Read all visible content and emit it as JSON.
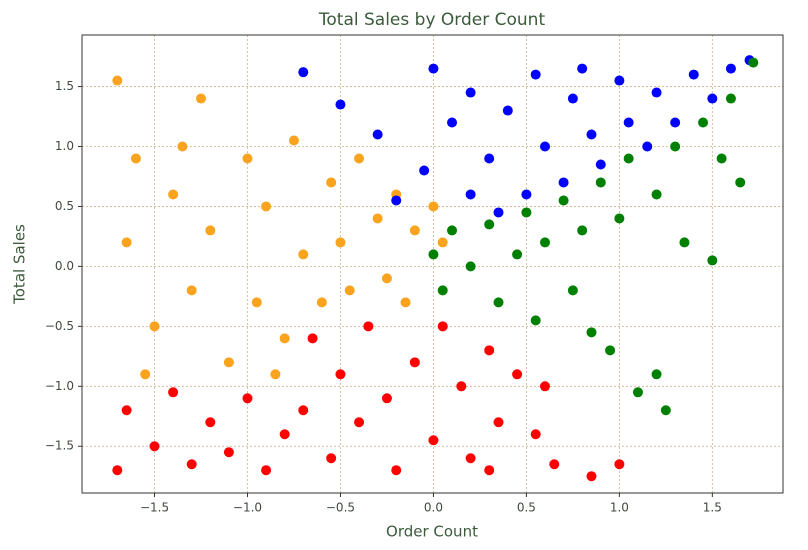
{
  "chart_data": {
    "type": "scatter",
    "title": "Total Sales by Order Count",
    "x_label": "Order Count",
    "y_label": "Total Sales",
    "xlim": [
      -1.89,
      1.88
    ],
    "ylim": [
      -1.89,
      1.93
    ],
    "grid": true,
    "xticks": [
      {
        "value": -1.5,
        "label": "−1.5"
      },
      {
        "value": -1.0,
        "label": "−1.0"
      },
      {
        "value": -0.5,
        "label": "−0.5"
      },
      {
        "value": 0,
        "label": "0.0"
      },
      0.5,
      {
        "value": 1.0,
        "label": "1.0"
      },
      1.5
    ],
    "yticks": [
      {
        "value": -1.5,
        "label": "−1.5"
      },
      {
        "value": -1.0,
        "label": "−1.0"
      },
      {
        "value": -0.5,
        "label": "−0.5"
      },
      {
        "value": 0,
        "label": "0.0"
      },
      0.5,
      {
        "value": 1.0,
        "label": "1.0"
      },
      1.5
    ],
    "series": [
      {
        "color": "#f9a31e",
        "x": [
          -1.7,
          -1.6,
          -1.65,
          -1.5,
          -1.4,
          -1.3,
          -1.25,
          -1.2,
          -1.1,
          -1.0,
          -0.95,
          -0.9,
          -0.8,
          -0.75,
          -0.7,
          -0.6,
          -0.55,
          -0.5,
          -0.45,
          -0.4,
          -0.3,
          -0.25,
          -0.2,
          -0.15,
          -0.1,
          0.0,
          0.05,
          -1.55,
          -1.35,
          -0.85
        ],
        "values": [
          1.55,
          0.9,
          0.2,
          -0.5,
          0.6,
          -0.2,
          1.4,
          0.3,
          -0.8,
          0.9,
          -0.3,
          0.5,
          -0.6,
          1.05,
          0.1,
          -0.3,
          0.7,
          0.2,
          -0.2,
          0.9,
          0.4,
          -0.1,
          0.6,
          -0.3,
          0.3,
          0.5,
          0.2,
          -0.9,
          1.0,
          -0.9
        ]
      },
      {
        "color": "#0000ff",
        "x": [
          -0.7,
          -0.5,
          -0.3,
          0.0,
          -0.05,
          0.1,
          0.2,
          0.2,
          0.3,
          0.4,
          0.5,
          0.55,
          0.6,
          0.7,
          0.75,
          0.85,
          0.9,
          1.0,
          1.05,
          1.15,
          1.2,
          1.3,
          1.4,
          1.5,
          1.6,
          1.7,
          0.35,
          0.8,
          -0.2
        ],
        "values": [
          1.62,
          1.35,
          1.1,
          1.65,
          0.8,
          1.2,
          0.6,
          1.45,
          0.9,
          1.3,
          0.6,
          1.6,
          1.0,
          0.7,
          1.4,
          1.1,
          0.85,
          1.55,
          1.2,
          1.0,
          1.45,
          1.2,
          1.6,
          1.4,
          1.65,
          1.72,
          0.45,
          1.65,
          0.55
        ]
      },
      {
        "color": "#008000",
        "x": [
          0.0,
          0.05,
          0.1,
          0.2,
          0.3,
          0.35,
          0.45,
          0.5,
          0.55,
          0.6,
          0.7,
          0.75,
          0.8,
          0.9,
          0.95,
          1.0,
          1.05,
          1.1,
          1.2,
          1.25,
          1.3,
          1.35,
          1.45,
          1.5,
          1.55,
          1.6,
          1.65,
          1.72,
          1.2,
          0.85
        ],
        "values": [
          0.1,
          -0.2,
          0.3,
          0.0,
          0.35,
          -0.3,
          0.1,
          0.45,
          -0.45,
          0.2,
          0.55,
          -0.2,
          0.3,
          0.7,
          -0.7,
          0.4,
          0.9,
          -1.05,
          0.6,
          -1.2,
          1.0,
          0.2,
          1.2,
          0.05,
          0.9,
          1.4,
          0.7,
          1.7,
          -0.9,
          -0.55
        ]
      },
      {
        "color": "#ff0000",
        "x": [
          -1.7,
          -1.65,
          -1.5,
          -1.4,
          -1.3,
          -1.2,
          -1.1,
          -1.0,
          -0.9,
          -0.8,
          -0.7,
          -0.65,
          -0.55,
          -0.5,
          -0.4,
          -0.35,
          -0.25,
          -0.2,
          -0.1,
          0.0,
          0.05,
          0.15,
          0.2,
          0.3,
          0.35,
          0.45,
          0.55,
          0.65,
          0.85,
          1.0,
          0.6,
          0.3
        ],
        "values": [
          -1.7,
          -1.2,
          -1.5,
          -1.05,
          -1.65,
          -1.3,
          -1.55,
          -1.1,
          -1.7,
          -1.4,
          -1.2,
          -0.6,
          -1.6,
          -0.9,
          -1.3,
          -0.5,
          -1.1,
          -1.7,
          -0.8,
          -1.45,
          -0.5,
          -1.0,
          -1.6,
          -0.7,
          -1.3,
          -0.9,
          -1.4,
          -1.65,
          -1.75,
          -1.65,
          -1.0,
          -1.7
        ]
      }
    ]
  }
}
